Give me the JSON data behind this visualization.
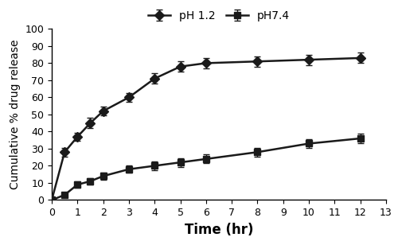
{
  "ph12": {
    "x": [
      0,
      0.5,
      1,
      1.5,
      2,
      3,
      4,
      5,
      6,
      8,
      10,
      12
    ],
    "y": [
      0,
      28,
      37,
      45,
      52,
      60,
      71,
      78,
      80,
      81,
      82,
      83
    ],
    "yerr": [
      0,
      2.5,
      2.5,
      3,
      2.5,
      2.5,
      3,
      3,
      3,
      3,
      3,
      3
    ],
    "label": "pH 1.2",
    "marker": "D",
    "color": "#1a1a1a",
    "markersize": 6,
    "linewidth": 1.8
  },
  "ph74": {
    "x": [
      0,
      0.5,
      1,
      1.5,
      2,
      3,
      4,
      5,
      6,
      8,
      10,
      12
    ],
    "y": [
      0,
      3,
      9,
      11,
      14,
      18,
      20,
      22,
      24,
      28,
      33,
      36
    ],
    "yerr": [
      0,
      1.5,
      2,
      2,
      2,
      2,
      2.5,
      2.5,
      2.5,
      2.5,
      2.5,
      3
    ],
    "label": "pH7.4",
    "marker": "s",
    "color": "#1a1a1a",
    "markersize": 6,
    "linewidth": 1.8
  },
  "xlabel": "Time (hr)",
  "ylabel": "Cumulative % drug release",
  "xlim": [
    0,
    13
  ],
  "ylim": [
    0,
    100
  ],
  "xticks": [
    0,
    1,
    2,
    3,
    4,
    5,
    6,
    7,
    8,
    9,
    10,
    11,
    12,
    13
  ],
  "yticks": [
    0,
    10,
    20,
    30,
    40,
    50,
    60,
    70,
    80,
    90,
    100
  ],
  "xlabel_fontsize": 12,
  "ylabel_fontsize": 10,
  "tick_fontsize": 9,
  "legend_fontsize": 10,
  "background_color": "#ffffff"
}
